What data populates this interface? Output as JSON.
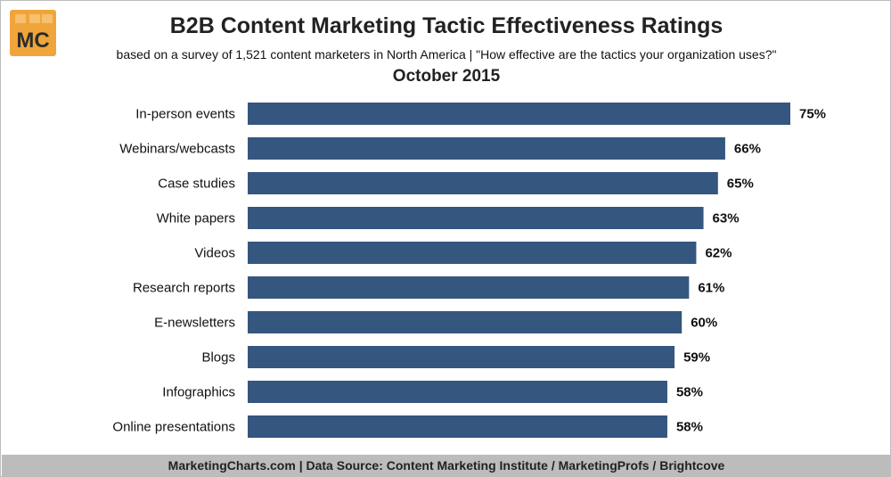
{
  "header": {
    "logo_text": "MC",
    "title": "B2B Content Marketing Tactic Effectiveness Ratings",
    "subtitle": "based on a survey of 1,521 content marketers in North America | \"How effective are the tactics your organization uses?\"",
    "date": "October 2015"
  },
  "colors": {
    "bar": "#35567f",
    "logo_bg": "#f0a53a",
    "footer_bg": "#bcbcbc"
  },
  "chart_data": {
    "type": "bar",
    "orientation": "horizontal",
    "categories": [
      "In-person events",
      "Webinars/webcasts",
      "Case studies",
      "White papers",
      "Videos",
      "Research reports",
      "E-newsletters",
      "Blogs",
      "Infographics",
      "Online presentations"
    ],
    "values": [
      75,
      66,
      65,
      63,
      62,
      61,
      60,
      59,
      58,
      58
    ],
    "value_labels": [
      "75%",
      "66%",
      "65%",
      "63%",
      "62%",
      "61%",
      "60%",
      "59%",
      "58%",
      "58%"
    ],
    "title": "B2B Content Marketing Tactic Effectiveness Ratings",
    "xlabel": "",
    "ylabel": "",
    "xlim": [
      0,
      75
    ],
    "grid": false,
    "legend": "none"
  },
  "footer": {
    "text": "MarketingCharts.com | Data Source: Content Marketing Institute / MarketingProfs / Brightcove"
  }
}
